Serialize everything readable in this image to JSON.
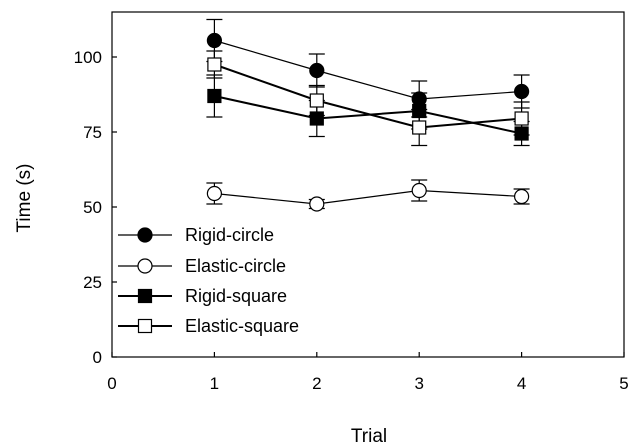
{
  "chart_data": {
    "type": "line",
    "title": "",
    "xlabel": "Trial",
    "ylabel": "Time (s)",
    "xlim": [
      0,
      5
    ],
    "ylim": [
      0,
      115
    ],
    "xticks": [
      "0",
      "1",
      "2",
      "3",
      "4",
      "5"
    ],
    "yticks": [
      "0",
      "25",
      "50",
      "75",
      "100"
    ],
    "x": [
      1,
      2,
      3,
      4
    ],
    "grid": false,
    "legend_position": "bottom-left",
    "series": [
      {
        "name": "Rigid-circle",
        "marker": "filled-circle",
        "values": [
          105.5,
          95.5,
          86,
          88.5
        ],
        "error": [
          7,
          5.5,
          6,
          5.5
        ]
      },
      {
        "name": "Elastic-circle",
        "marker": "open-circle",
        "values": [
          54.5,
          51,
          55.5,
          53.5
        ],
        "error": [
          3.5,
          1.5,
          3.5,
          2.5
        ]
      },
      {
        "name": "Rigid-square",
        "marker": "filled-square",
        "values": [
          87,
          79.5,
          82,
          74.5
        ],
        "error": [
          7,
          6,
          6,
          4
        ]
      },
      {
        "name": "Elastic-square",
        "marker": "open-square",
        "values": [
          97.5,
          85.5,
          76.5,
          79.5
        ],
        "error": [
          4.5,
          5,
          6,
          5.5
        ]
      }
    ]
  }
}
